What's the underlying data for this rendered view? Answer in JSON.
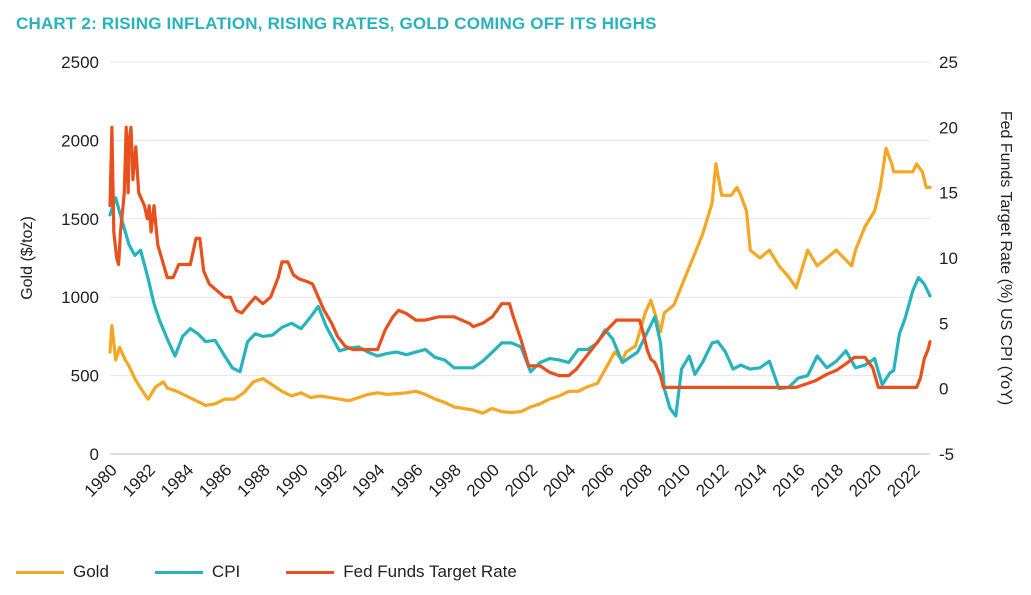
{
  "title": "CHART 2: RISING INFLATION, RISING RATES, GOLD COMING OFF ITS HIGHS",
  "colors": {
    "gold": "#f5a623",
    "cpi": "#27b3bd",
    "fed": "#e8501d",
    "title": "#27b3bd",
    "grid": "#e4e4e4"
  },
  "chart_data": {
    "type": "line",
    "title": "CHART 2: RISING INFLATION, RISING RATES, GOLD COMING OFF ITS HIGHS",
    "x_ticks": [
      "1980",
      "1982",
      "1984",
      "1986",
      "1988",
      "1990",
      "1992",
      "1994",
      "1996",
      "1998",
      "2000",
      "2002",
      "2004",
      "2006",
      "2008",
      "2010",
      "2012",
      "2014",
      "2016",
      "2018",
      "2020",
      "2022"
    ],
    "xlim": [
      1980,
      2022.9
    ],
    "left_axis": {
      "label": "Gold ($/toz)",
      "ylim": [
        0,
        2500
      ],
      "ticks": [
        "0",
        "500",
        "1000",
        "1500",
        "2000",
        "2500"
      ]
    },
    "right_axis": {
      "label": "Fed Funds Target Rate (%) US CPI (YoY)",
      "ylim": [
        -5,
        25
      ],
      "ticks": [
        "-5",
        "0",
        "5",
        "10",
        "15",
        "20",
        "25"
      ]
    },
    "grid": "horizontal",
    "legend_position": "bottom-left",
    "series": [
      {
        "name": "Gold",
        "axis": "left",
        "color": "#f5a623",
        "x": [
          1980.0,
          1980.1,
          1980.3,
          1980.5,
          1980.8,
          1981.0,
          1981.3,
          1981.6,
          1982.0,
          1982.4,
          1982.8,
          1983.0,
          1983.5,
          1984.0,
          1984.5,
          1985.0,
          1985.5,
          1986.0,
          1986.5,
          1987.0,
          1987.5,
          1988.0,
          1988.5,
          1989.0,
          1989.5,
          1990.0,
          1990.5,
          1991.0,
          1991.5,
          1992.0,
          1992.5,
          1993.0,
          1993.5,
          1994.0,
          1994.5,
          1995.0,
          1995.5,
          1996.0,
          1996.5,
          1997.0,
          1997.5,
          1998.0,
          1998.5,
          1999.0,
          1999.5,
          1999.8,
          2000.0,
          2000.5,
          2001.0,
          2001.5,
          2002.0,
          2002.5,
          2003.0,
          2003.5,
          2004.0,
          2004.5,
          2005.0,
          2005.5,
          2006.0,
          2006.4,
          2006.8,
          2007.0,
          2007.5,
          2008.0,
          2008.3,
          2008.8,
          2009.0,
          2009.5,
          2010.0,
          2010.5,
          2011.0,
          2011.5,
          2011.7,
          2012.0,
          2012.5,
          2012.8,
          2013.0,
          2013.3,
          2013.5,
          2014.0,
          2014.5,
          2015.0,
          2015.5,
          2015.9,
          2016.5,
          2017.0,
          2017.5,
          2018.0,
          2018.8,
          2019.0,
          2019.5,
          2020.0,
          2020.3,
          2020.6,
          2020.9,
          2021.0,
          2021.5,
          2022.0,
          2022.2,
          2022.5,
          2022.7,
          2022.9
        ],
        "values": [
          650,
          820,
          600,
          680,
          600,
          560,
          480,
          420,
          350,
          430,
          460,
          420,
          400,
          370,
          340,
          310,
          320,
          350,
          350,
          390,
          460,
          480,
          440,
          400,
          370,
          390,
          360,
          370,
          360,
          350,
          340,
          360,
          380,
          390,
          380,
          385,
          390,
          400,
          380,
          350,
          330,
          300,
          290,
          280,
          260,
          280,
          290,
          270,
          265,
          270,
          300,
          320,
          350,
          370,
          400,
          400,
          430,
          450,
          560,
          650,
          600,
          650,
          690,
          900,
          980,
          780,
          900,
          950,
          1100,
          1250,
          1400,
          1600,
          1850,
          1650,
          1650,
          1700,
          1650,
          1550,
          1300,
          1250,
          1300,
          1200,
          1130,
          1060,
          1300,
          1200,
          1250,
          1300,
          1200,
          1300,
          1450,
          1550,
          1700,
          1950,
          1850,
          1800,
          1800,
          1800,
          1850,
          1800,
          1700,
          1700
        ]
      },
      {
        "name": "CPI",
        "axis": "right",
        "color": "#27b3bd",
        "x": [
          1980.0,
          1980.3,
          1980.6,
          1981.0,
          1981.3,
          1981.6,
          1982.0,
          1982.3,
          1982.6,
          1983.0,
          1983.4,
          1983.8,
          1984.2,
          1984.6,
          1985.0,
          1985.5,
          1986.0,
          1986.4,
          1986.8,
          1987.2,
          1987.6,
          1988.0,
          1988.5,
          1989.0,
          1989.5,
          1990.0,
          1990.5,
          1990.9,
          1991.3,
          1991.7,
          1992.0,
          1992.5,
          1993.0,
          1993.5,
          1994.0,
          1994.5,
          1995.0,
          1995.5,
          1996.0,
          1996.5,
          1997.0,
          1997.5,
          1998.0,
          1998.5,
          1999.0,
          1999.5,
          2000.0,
          2000.5,
          2001.0,
          2001.5,
          2002.0,
          2002.5,
          2003.0,
          2003.5,
          2004.0,
          2004.5,
          2005.0,
          2005.5,
          2005.9,
          2006.3,
          2006.8,
          2007.2,
          2007.6,
          2008.0,
          2008.5,
          2008.8,
          2009.0,
          2009.3,
          2009.6,
          2009.9,
          2010.3,
          2010.6,
          2011.0,
          2011.5,
          2011.8,
          2012.2,
          2012.6,
          2013.0,
          2013.5,
          2014.0,
          2014.5,
          2015.0,
          2015.5,
          2016.0,
          2016.5,
          2017.0,
          2017.5,
          2018.0,
          2018.5,
          2019.0,
          2019.5,
          2020.0,
          2020.4,
          2020.8,
          2021.0,
          2021.3,
          2021.6,
          2022.0,
          2022.3,
          2022.6,
          2022.9
        ],
        "values": [
          13.3,
          14.6,
          13.0,
          11.0,
          10.2,
          10.6,
          8.4,
          6.5,
          5.2,
          3.8,
          2.5,
          4.0,
          4.6,
          4.2,
          3.6,
          3.7,
          2.5,
          1.6,
          1.3,
          3.6,
          4.2,
          4.0,
          4.1,
          4.7,
          5.0,
          4.6,
          5.5,
          6.3,
          4.8,
          3.7,
          2.9,
          3.1,
          3.2,
          2.8,
          2.5,
          2.7,
          2.8,
          2.6,
          2.8,
          3.0,
          2.4,
          2.2,
          1.6,
          1.6,
          1.6,
          2.1,
          2.8,
          3.5,
          3.5,
          3.2,
          1.3,
          2.0,
          2.3,
          2.2,
          2.0,
          3.0,
          3.0,
          3.5,
          4.5,
          3.8,
          2.0,
          2.4,
          2.8,
          4.0,
          5.5,
          3.5,
          0.0,
          -1.5,
          -2.1,
          1.5,
          2.5,
          1.1,
          2.0,
          3.5,
          3.6,
          2.8,
          1.5,
          1.8,
          1.5,
          1.6,
          2.1,
          0.0,
          0.1,
          0.8,
          1.0,
          2.5,
          1.6,
          2.1,
          2.9,
          1.6,
          1.8,
          2.3,
          0.3,
          1.2,
          1.4,
          4.2,
          5.4,
          7.5,
          8.5,
          8.0,
          7.1
        ]
      },
      {
        "name": "Fed Funds Target Rate",
        "axis": "right",
        "color": "#e8501d",
        "x": [
          1980.0,
          1980.1,
          1980.2,
          1980.35,
          1980.45,
          1980.55,
          1980.75,
          1980.85,
          1980.95,
          1981.0,
          1981.1,
          1981.2,
          1981.35,
          1981.5,
          1981.8,
          1981.95,
          1982.05,
          1982.15,
          1982.3,
          1982.5,
          1982.8,
          1983.0,
          1983.3,
          1983.6,
          1983.9,
          1984.2,
          1984.5,
          1984.7,
          1984.9,
          1985.2,
          1985.6,
          1986.0,
          1986.3,
          1986.6,
          1986.9,
          1987.3,
          1987.6,
          1988.0,
          1988.4,
          1988.8,
          1989.0,
          1989.3,
          1989.6,
          1989.9,
          1990.3,
          1990.6,
          1990.9,
          1991.2,
          1991.6,
          1991.9,
          1992.3,
          1992.7,
          1993.0,
          1993.5,
          1994.0,
          1994.4,
          1994.8,
          1995.1,
          1995.5,
          1996.0,
          1996.5,
          1997.2,
          1998.0,
          1998.8,
          1999.0,
          1999.5,
          2000.0,
          2000.5,
          2000.9,
          2001.1,
          2001.5,
          2001.9,
          2002.5,
          2003.0,
          2003.5,
          2004.0,
          2004.4,
          2004.8,
          2005.2,
          2005.6,
          2006.0,
          2006.5,
          2007.0,
          2007.7,
          2007.9,
          2008.1,
          2008.3,
          2008.5,
          2008.8,
          2008.95,
          2015.9,
          2016.9,
          2017.5,
          2018.0,
          2018.5,
          2018.95,
          2019.5,
          2019.7,
          2019.9,
          2020.2,
          2022.2,
          2022.4,
          2022.6,
          2022.8,
          2022.9
        ],
        "values": [
          14,
          20,
          12,
          10,
          9.5,
          12,
          15,
          20,
          15,
          19,
          20,
          16,
          18.5,
          15,
          14,
          13,
          14,
          12,
          14,
          11,
          9.5,
          8.5,
          8.5,
          9.5,
          9.5,
          9.5,
          11.5,
          11.5,
          9,
          8,
          7.5,
          7,
          7,
          6,
          5.8,
          6.5,
          7.0,
          6.5,
          7.0,
          8.5,
          9.7,
          9.7,
          8.7,
          8.4,
          8.2,
          8.0,
          7.0,
          6.0,
          5.0,
          4.0,
          3.25,
          3.0,
          3.0,
          3.0,
          3.0,
          4.5,
          5.5,
          6.0,
          5.75,
          5.25,
          5.25,
          5.5,
          5.5,
          5.0,
          4.75,
          5.0,
          5.5,
          6.5,
          6.5,
          5.5,
          3.75,
          1.75,
          1.75,
          1.25,
          1.0,
          1.0,
          1.5,
          2.25,
          3.0,
          3.75,
          4.5,
          5.25,
          5.25,
          5.25,
          4.25,
          3.0,
          2.25,
          2.0,
          1.0,
          0.1,
          0.1,
          0.6,
          1.1,
          1.4,
          1.9,
          2.4,
          2.4,
          2.0,
          1.6,
          0.1,
          0.1,
          0.8,
          2.3,
          3.0,
          3.6
        ]
      }
    ]
  },
  "legend": [
    {
      "label": "Gold",
      "color": "#f5a623"
    },
    {
      "label": "CPI",
      "color": "#27b3bd"
    },
    {
      "label": "Fed Funds Target Rate",
      "color": "#e8501d"
    }
  ]
}
